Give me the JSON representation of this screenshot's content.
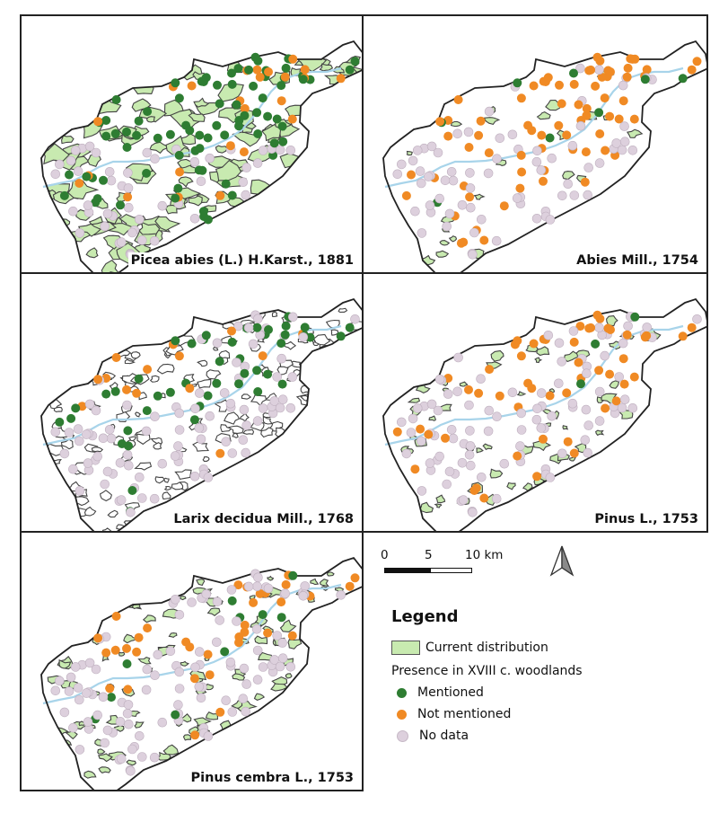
{
  "panels": [
    {
      "title": "Picea abies (L.) H.Karst., 1881",
      "species": "picea"
    },
    {
      "title": "Abies Mill., 1754",
      "species": "abies"
    },
    {
      "title": "Larix decidua Mill., 1768",
      "species": "larix"
    },
    {
      "title": "Pinus L., 1753",
      "species": "pinus"
    },
    {
      "title": "Pinus cembra L., 1753",
      "species": "cembra"
    }
  ],
  "scale": {
    "ticks": [
      "0",
      "5",
      "10 km"
    ]
  },
  "legend": {
    "title": "Legend",
    "current_distribution": "Current distribution",
    "subtitle": "Presence in XVIII c. woodlands",
    "mentioned": "Mentioned",
    "not_mentioned": "Not mentioned",
    "no_data": "No data"
  },
  "colors": {
    "mentioned": "#2e7d32",
    "not_mentioned": "#f08a24",
    "no_data": "#ddd0dd",
    "distribution": "#c8eab0",
    "river": "#a8d4ea",
    "outline": "#222222"
  },
  "icons": {
    "north_arrow": "north-arrow-icon"
  }
}
